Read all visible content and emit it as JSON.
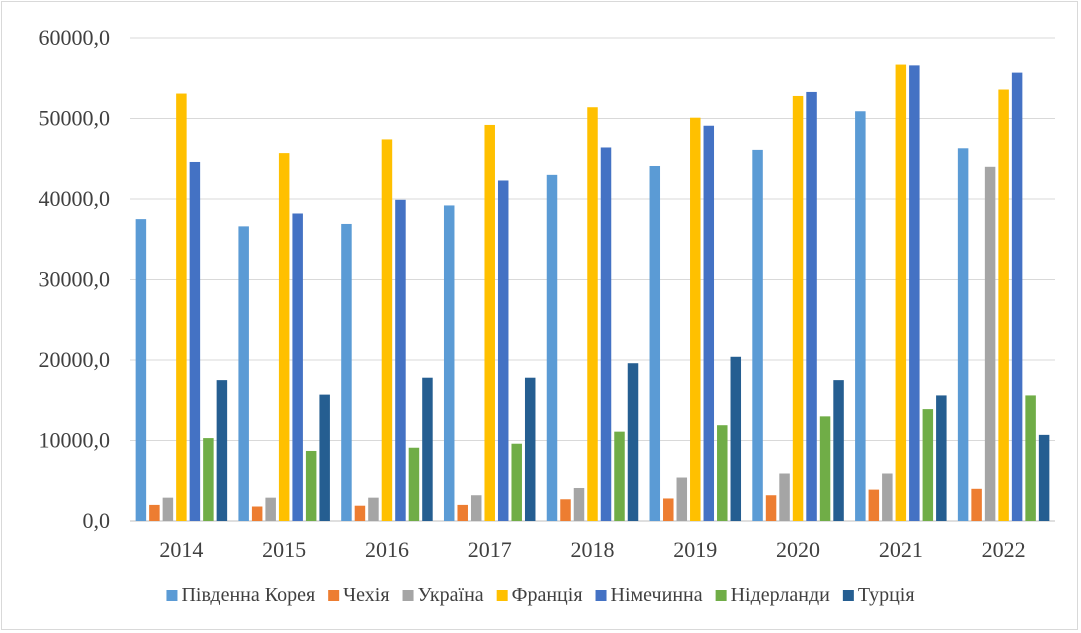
{
  "chart_data": {
    "type": "bar",
    "title": "",
    "xlabel": "",
    "ylabel": "",
    "ylim": [
      0,
      60000
    ],
    "y_ticks": [
      0,
      10000,
      20000,
      30000,
      40000,
      50000,
      60000
    ],
    "y_tick_labels": [
      "0,0",
      "10000,0",
      "20000,0",
      "30000,0",
      "40000,0",
      "50000,0",
      "60000,0"
    ],
    "grid": "horizontal",
    "legend_position": "bottom",
    "categories": [
      "2014",
      "2015",
      "2016",
      "2017",
      "2018",
      "2019",
      "2020",
      "2021",
      "2022"
    ],
    "series": [
      {
        "name": "Південна Корея",
        "color": "#5b9bd5",
        "values": [
          37500,
          36600,
          36900,
          39200,
          43000,
          44100,
          46100,
          50900,
          46300
        ]
      },
      {
        "name": "Чехія",
        "color": "#ed7d31",
        "values": [
          2000,
          1800,
          1900,
          2000,
          2700,
          2800,
          3200,
          3900,
          4000
        ]
      },
      {
        "name": "Україна",
        "color": "#a5a5a5",
        "values": [
          2900,
          2900,
          2900,
          3200,
          4100,
          5400,
          5900,
          5900,
          44000
        ]
      },
      {
        "name": "Франція",
        "color": "#ffc000",
        "values": [
          53100,
          45700,
          47400,
          49200,
          51400,
          50100,
          52800,
          56700,
          53600
        ]
      },
      {
        "name": "Німечинна",
        "color": "#4472c4",
        "values": [
          44600,
          38200,
          39900,
          42300,
          46400,
          49100,
          53300,
          56600,
          55700
        ]
      },
      {
        "name": "Нідерланди",
        "color": "#70ad47",
        "values": [
          10300,
          8700,
          9100,
          9600,
          11100,
          11900,
          13000,
          13900,
          15600
        ]
      },
      {
        "name": "Турція",
        "color": "#255e91",
        "values": [
          17500,
          15700,
          17800,
          17800,
          19600,
          20400,
          17500,
          15600,
          10700
        ]
      }
    ]
  }
}
